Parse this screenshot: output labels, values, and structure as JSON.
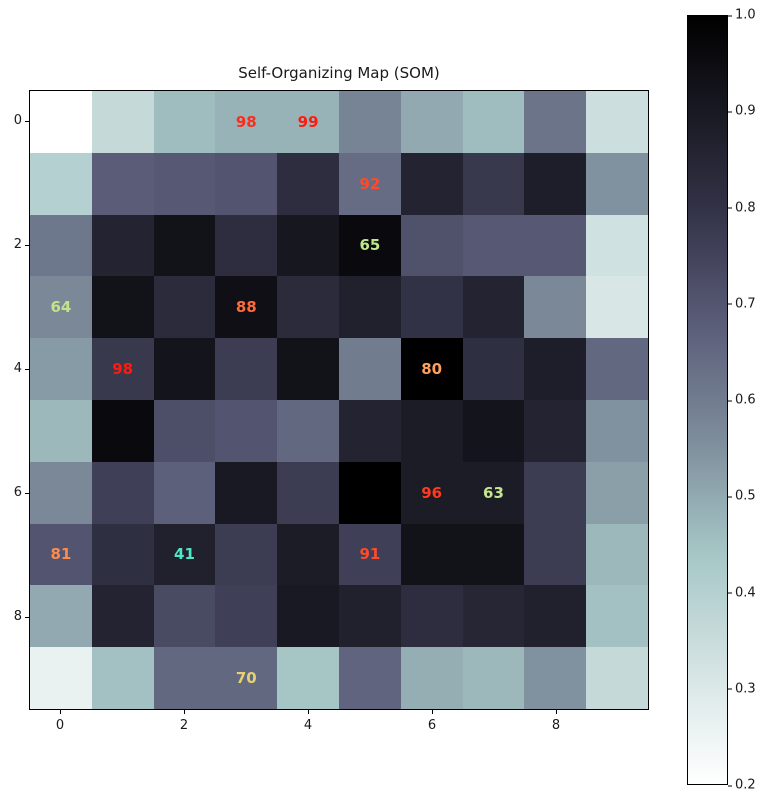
{
  "chart_data": {
    "type": "heatmap",
    "title": "Self-Organizing Map (SOM)",
    "xlabel": "",
    "ylabel": "",
    "x_ticks": [
      "0",
      "2",
      "4",
      "6",
      "8"
    ],
    "y_ticks": [
      "0",
      "2",
      "4",
      "6",
      "8"
    ],
    "grid_size": [
      10,
      10
    ],
    "colormap": "bone_r",
    "colorbar": {
      "range": [
        0.2,
        1.0
      ],
      "ticks": [
        "1.0",
        "0.9",
        "0.8",
        "0.7",
        "0.6",
        "0.5",
        "0.4",
        "0.3",
        "0.2"
      ]
    },
    "values": [
      [
        0.2,
        0.36,
        0.46,
        0.48,
        0.48,
        0.58,
        0.5,
        0.46,
        0.62,
        0.34
      ],
      [
        0.4,
        0.68,
        0.69,
        0.7,
        0.82,
        0.64,
        0.86,
        0.78,
        0.88,
        0.55
      ],
      [
        0.61,
        0.86,
        0.93,
        0.82,
        0.91,
        0.96,
        0.71,
        0.69,
        0.69,
        0.33
      ],
      [
        0.57,
        0.93,
        0.83,
        0.94,
        0.83,
        0.87,
        0.8,
        0.86,
        0.57,
        0.31
      ],
      [
        0.53,
        0.78,
        0.92,
        0.77,
        0.93,
        0.6,
        1.0,
        0.81,
        0.88,
        0.65
      ],
      [
        0.47,
        0.96,
        0.72,
        0.7,
        0.65,
        0.86,
        0.89,
        0.92,
        0.86,
        0.55
      ],
      [
        0.57,
        0.76,
        0.67,
        0.9,
        0.77,
        1.0,
        0.89,
        0.89,
        0.77,
        0.52
      ],
      [
        0.7,
        0.81,
        0.87,
        0.77,
        0.89,
        0.76,
        0.93,
        0.93,
        0.77,
        0.47
      ],
      [
        0.5,
        0.86,
        0.73,
        0.76,
        0.9,
        0.87,
        0.82,
        0.85,
        0.87,
        0.45
      ],
      [
        0.26,
        0.45,
        0.65,
        0.65,
        0.44,
        0.66,
        0.49,
        0.47,
        0.55,
        0.36
      ]
    ],
    "annotations": [
      {
        "row": 0,
        "col": 3,
        "text": "98",
        "color": "#ff2a1a"
      },
      {
        "row": 0,
        "col": 4,
        "text": "99",
        "color": "#ff1a0f"
      },
      {
        "row": 1,
        "col": 5,
        "text": "92",
        "color": "#ff4a2a"
      },
      {
        "row": 2,
        "col": 5,
        "text": "65",
        "color": "#bfe68a"
      },
      {
        "row": 3,
        "col": 0,
        "text": "64",
        "color": "#c2e38a"
      },
      {
        "row": 3,
        "col": 3,
        "text": "88",
        "color": "#ff6a3a"
      },
      {
        "row": 4,
        "col": 1,
        "text": "98",
        "color": "#ff1a0f"
      },
      {
        "row": 4,
        "col": 6,
        "text": "80",
        "color": "#ffa05a"
      },
      {
        "row": 6,
        "col": 6,
        "text": "96",
        "color": "#ff3a20"
      },
      {
        "row": 6,
        "col": 7,
        "text": "63",
        "color": "#c5e68f"
      },
      {
        "row": 7,
        "col": 0,
        "text": "81",
        "color": "#ff8a4a"
      },
      {
        "row": 7,
        "col": 2,
        "text": "41",
        "color": "#4ee8c8"
      },
      {
        "row": 7,
        "col": 5,
        "text": "91",
        "color": "#ff4a2a"
      },
      {
        "row": 9,
        "col": 3,
        "text": "70",
        "color": "#e6d070"
      }
    ]
  }
}
